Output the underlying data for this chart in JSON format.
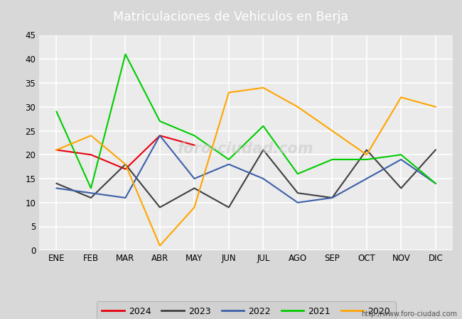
{
  "title": "Matriculaciones de Vehiculos en Berja",
  "title_color": "#ffffff",
  "title_bg_color": "#4a86c8",
  "months": [
    "ENE",
    "FEB",
    "MAR",
    "ABR",
    "MAY",
    "JUN",
    "JUL",
    "AGO",
    "SEP",
    "OCT",
    "NOV",
    "DIC"
  ],
  "series": {
    "2024": {
      "color": "#e8000d",
      "data": [
        21,
        20,
        17,
        24,
        22,
        null,
        null,
        null,
        null,
        null,
        null,
        null
      ]
    },
    "2023": {
      "color": "#404040",
      "data": [
        14,
        11,
        18,
        9,
        13,
        9,
        21,
        12,
        11,
        21,
        13,
        21
      ]
    },
    "2022": {
      "color": "#3d5fa8",
      "data": [
        13,
        12,
        11,
        24,
        15,
        18,
        15,
        10,
        11,
        15,
        19,
        14
      ]
    },
    "2021": {
      "color": "#00cc00",
      "data": [
        29,
        13,
        41,
        27,
        24,
        19,
        26,
        16,
        19,
        19,
        20,
        14
      ]
    },
    "2020": {
      "color": "#ffa500",
      "data": [
        21,
        24,
        18,
        1,
        9,
        33,
        34,
        30,
        25,
        20,
        32,
        30
      ]
    }
  },
  "legend_order": [
    "2024",
    "2023",
    "2022",
    "2021",
    "2020"
  ],
  "ylim": [
    0,
    45
  ],
  "yticks": [
    0,
    5,
    10,
    15,
    20,
    25,
    30,
    35,
    40,
    45
  ],
  "outer_bg_color": "#d8d8d8",
  "plot_bg_color": "#ebebeb",
  "grid_color": "#ffffff",
  "url": "http://www.foro-ciudad.com",
  "watermark": "foro-ciudad.com",
  "watermark_color": "#c8c8c8",
  "legend_bg": "#d0d0d0",
  "legend_edge": "#aaaaaa"
}
